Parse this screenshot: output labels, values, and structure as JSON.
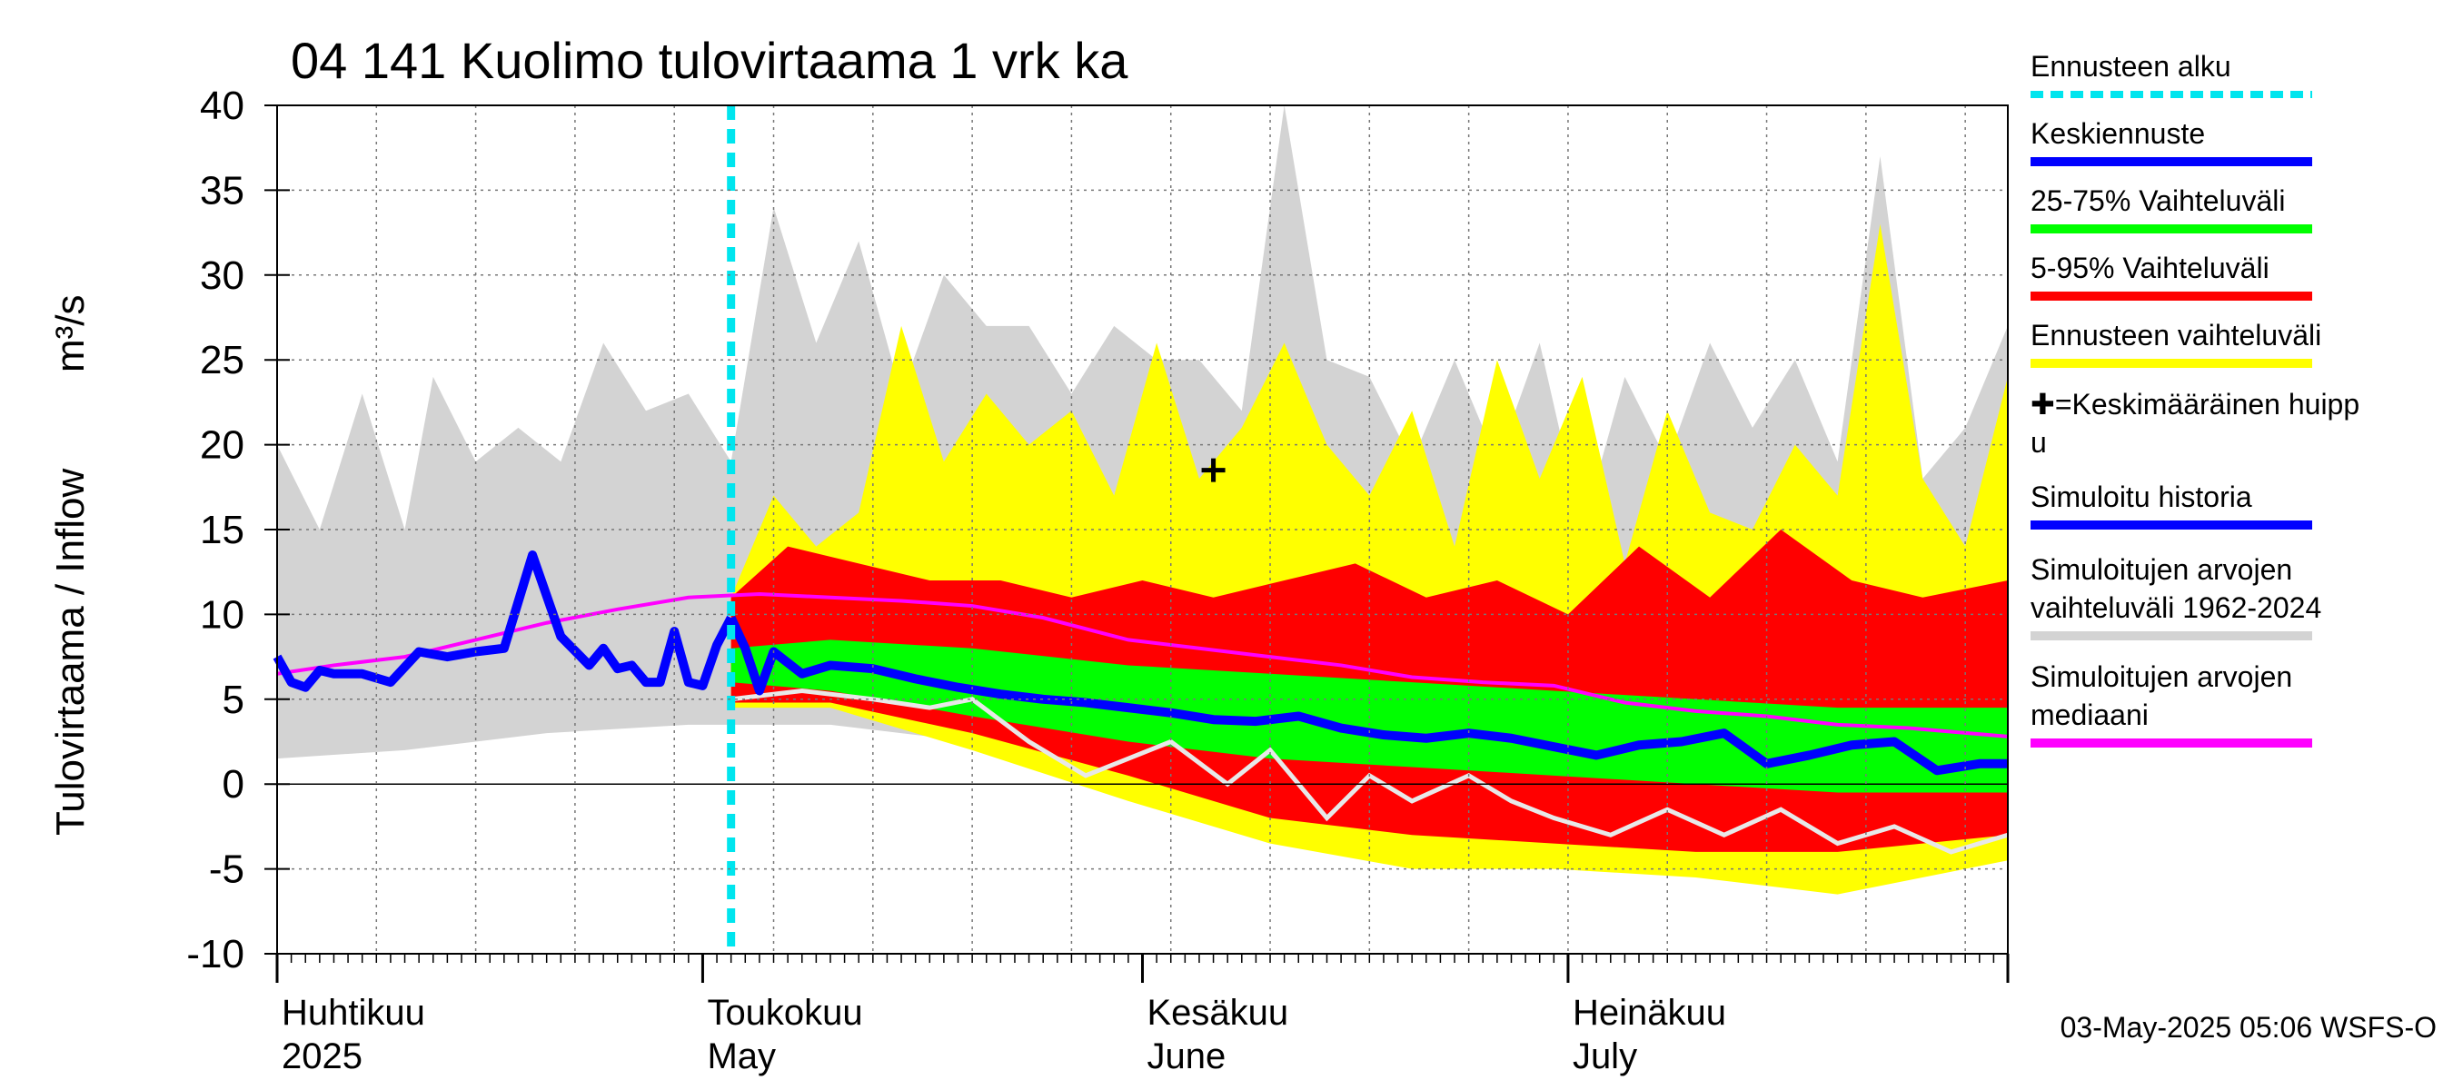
{
  "chart_data": {
    "type": "area",
    "title": "04 141 Kuolimo tulovirtaama 1 vrk ka",
    "ylabel": "Tulovirtaama / Inflow",
    "yunit": "m³/s",
    "ylim": [
      -10,
      40
    ],
    "yticks": [
      -10,
      -5,
      0,
      5,
      10,
      15,
      20,
      25,
      30,
      35,
      40
    ],
    "xlim": [
      "2025-04-01",
      "2025-08-01"
    ],
    "month_labels": [
      {
        "fi": "Huhtikuu",
        "en": "2025",
        "date": "2025-04-01"
      },
      {
        "fi": "Toukokuu",
        "en": "May",
        "date": "2025-05-01"
      },
      {
        "fi": "Kesäkuu",
        "en": "June",
        "date": "2025-06-01"
      },
      {
        "fi": "Heinäkuu",
        "en": "July",
        "date": "2025-07-01"
      }
    ],
    "forecast_start": "2025-05-03",
    "grid": true,
    "legend_position": "right",
    "timestamp": "03-May-2025 05:06 WSFS-O",
    "colors": {
      "forecast_start": "#00e5ee",
      "mean_forecast": "#0000ff",
      "band_25_75": "#00ff00",
      "band_5_95": "#ff0000",
      "forecast_range": "#ffff00",
      "simulated": "#0000ff",
      "hist_range": "#d3d3d3",
      "hist_median": "#ff00ff",
      "white_line": "#e8e8e8"
    },
    "legend": [
      {
        "label": "Ennusteen alku",
        "type": "dash",
        "color": "#00e5ee"
      },
      {
        "label": "Keskiennuste",
        "type": "line",
        "color": "#0000ff"
      },
      {
        "label": "25-75% Vaihteluväli",
        "type": "line",
        "color": "#00ff00"
      },
      {
        "label": "5-95% Vaihteluväli",
        "type": "line",
        "color": "#ff0000"
      },
      {
        "label": "Ennusteen vaihteluväli",
        "type": "line",
        "color": "#ffff00"
      },
      {
        "label": "✚=Keskimääräinen huipp",
        "label2": "u",
        "type": "none"
      },
      {
        "label": "Simuloitu historia",
        "type": "line",
        "color": "#0000ff"
      },
      {
        "label": "Simuloitujen arvojen",
        "label2": "vaihteluväli 1962-2024",
        "type": "line",
        "color": "#d3d3d3"
      },
      {
        "label": "Simuloitujen arvojen",
        "label2": "mediaani",
        "type": "line",
        "color": "#ff00ff"
      }
    ],
    "mean_peak": {
      "date": "2025-06-06",
      "value": 18.5
    },
    "series": [
      {
        "name": "Simuloitu historia",
        "x": [
          "2025-04-01",
          "2025-04-02",
          "2025-04-03",
          "2025-04-04",
          "2025-04-05",
          "2025-04-07",
          "2025-04-09",
          "2025-04-11",
          "2025-04-13",
          "2025-04-15",
          "2025-04-17",
          "2025-04-19",
          "2025-04-21",
          "2025-04-23",
          "2025-04-24",
          "2025-04-25",
          "2025-04-26",
          "2025-04-27",
          "2025-04-28",
          "2025-04-29",
          "2025-04-30",
          "2025-05-01",
          "2025-05-02",
          "2025-05-03"
        ],
        "values": [
          7.5,
          6.0,
          5.7,
          6.7,
          6.5,
          6.5,
          6.0,
          7.8,
          7.5,
          7.8,
          8.0,
          13.5,
          8.7,
          7.0,
          8.0,
          6.8,
          7.0,
          6.0,
          6.0,
          9.0,
          6.0,
          5.8,
          8.2,
          9.8
        ]
      },
      {
        "name": "Keskiennuste",
        "x": [
          "2025-05-03",
          "2025-05-04",
          "2025-05-05",
          "2025-05-06",
          "2025-05-08",
          "2025-05-10",
          "2025-05-13",
          "2025-05-16",
          "2025-05-19",
          "2025-05-22",
          "2025-05-25",
          "2025-05-28",
          "2025-05-31",
          "2025-06-03",
          "2025-06-06",
          "2025-06-09",
          "2025-06-12",
          "2025-06-15",
          "2025-06-18",
          "2025-06-21",
          "2025-06-24",
          "2025-06-27",
          "2025-06-30",
          "2025-07-03",
          "2025-07-06",
          "2025-07-09",
          "2025-07-12",
          "2025-07-15",
          "2025-07-18",
          "2025-07-21",
          "2025-07-24",
          "2025-07-27",
          "2025-07-30",
          "2025-08-01"
        ],
        "values": [
          9.8,
          8.0,
          5.5,
          7.8,
          6.5,
          7.0,
          6.8,
          6.2,
          5.7,
          5.3,
          5.0,
          4.8,
          4.5,
          4.2,
          3.8,
          3.7,
          4.0,
          3.3,
          2.9,
          2.7,
          3.0,
          2.7,
          2.2,
          1.7,
          2.3,
          2.5,
          3.0,
          1.2,
          1.7,
          2.3,
          2.5,
          0.8,
          1.2,
          1.2
        ]
      },
      {
        "name": "Simuloitujen arvojen mediaani",
        "x": [
          "2025-04-01",
          "2025-04-05",
          "2025-04-10",
          "2025-04-15",
          "2025-04-20",
          "2025-04-25",
          "2025-04-30",
          "2025-05-05",
          "2025-05-10",
          "2025-05-15",
          "2025-05-20",
          "2025-05-25",
          "2025-05-31",
          "2025-06-05",
          "2025-06-10",
          "2025-06-15",
          "2025-06-20",
          "2025-06-25",
          "2025-06-30",
          "2025-07-05",
          "2025-07-10",
          "2025-07-15",
          "2025-07-20",
          "2025-07-25",
          "2025-08-01"
        ],
        "values": [
          6.5,
          7.0,
          7.5,
          8.5,
          9.5,
          10.3,
          11.0,
          11.2,
          11.0,
          10.8,
          10.5,
          9.8,
          8.5,
          8.0,
          7.5,
          7.0,
          6.3,
          6.0,
          5.8,
          4.8,
          4.3,
          4.0,
          3.5,
          3.3,
          2.8
        ]
      },
      {
        "name": "Simuloitujen arvojen vaihteluväli 1962-2024 (max)",
        "x": [
          "2025-04-01",
          "2025-04-04",
          "2025-04-07",
          "2025-04-10",
          "2025-04-12",
          "2025-04-15",
          "2025-04-18",
          "2025-04-21",
          "2025-04-24",
          "2025-04-27",
          "2025-04-30",
          "2025-05-03",
          "2025-05-06",
          "2025-05-09",
          "2025-05-12",
          "2025-05-15",
          "2025-05-18",
          "2025-05-21",
          "2025-05-24",
          "2025-05-27",
          "2025-05-30",
          "2025-06-02",
          "2025-06-05",
          "2025-06-08",
          "2025-06-11",
          "2025-06-14",
          "2025-06-17",
          "2025-06-20",
          "2025-06-23",
          "2025-06-26",
          "2025-06-29",
          "2025-07-02",
          "2025-07-05",
          "2025-07-08",
          "2025-07-11",
          "2025-07-14",
          "2025-07-17",
          "2025-07-20",
          "2025-07-23",
          "2025-07-26",
          "2025-07-29",
          "2025-08-01"
        ],
        "values": [
          20,
          15,
          23,
          15,
          24,
          19,
          21,
          19,
          26,
          22,
          23,
          19,
          34,
          26,
          32,
          23,
          30,
          27,
          27,
          23,
          27,
          25,
          25,
          22,
          40,
          25,
          24,
          19,
          25,
          19,
          26,
          15,
          24,
          19,
          26,
          21,
          25,
          19,
          37,
          18,
          21,
          27
        ]
      },
      {
        "name": "Simuloitujen arvojen vaihteluväli 1962-2024 (min)",
        "x": [
          "2025-04-01",
          "2025-04-10",
          "2025-04-20",
          "2025-04-30",
          "2025-05-10",
          "2025-05-20",
          "2025-05-31",
          "2025-06-10",
          "2025-06-20",
          "2025-06-30",
          "2025-07-10",
          "2025-07-20",
          "2025-08-01"
        ],
        "values": [
          1.5,
          2.0,
          3.0,
          3.5,
          3.5,
          2.5,
          0.5,
          -1.0,
          -3.0,
          -4.0,
          -4.5,
          -5.0,
          -4.0
        ]
      },
      {
        "name": "Ennusteen vaihteluväli (max)",
        "x": [
          "2025-05-03",
          "2025-05-06",
          "2025-05-09",
          "2025-05-12",
          "2025-05-15",
          "2025-05-18",
          "2025-05-21",
          "2025-05-24",
          "2025-05-27",
          "2025-05-30",
          "2025-06-02",
          "2025-06-05",
          "2025-06-08",
          "2025-06-11",
          "2025-06-14",
          "2025-06-17",
          "2025-06-20",
          "2025-06-23",
          "2025-06-26",
          "2025-06-29",
          "2025-07-02",
          "2025-07-05",
          "2025-07-08",
          "2025-07-11",
          "2025-07-14",
          "2025-07-17",
          "2025-07-20",
          "2025-07-23",
          "2025-07-26",
          "2025-07-29",
          "2025-08-01"
        ],
        "values": [
          11,
          17,
          14,
          16,
          27,
          19,
          23,
          20,
          22,
          17,
          26,
          18,
          21,
          26,
          20,
          17,
          22,
          14,
          25,
          18,
          24,
          13,
          22,
          16,
          15,
          20,
          17,
          33,
          18,
          14,
          24
        ]
      },
      {
        "name": "Ennusteen vaihteluväli (min)",
        "x": [
          "2025-05-03",
          "2025-05-10",
          "2025-05-20",
          "2025-05-31",
          "2025-06-10",
          "2025-06-20",
          "2025-06-30",
          "2025-07-10",
          "2025-07-20",
          "2025-08-01"
        ],
        "values": [
          4.5,
          4.5,
          2.0,
          -1.0,
          -3.5,
          -5.0,
          -5.0,
          -5.5,
          -6.5,
          -4.5
        ]
      },
      {
        "name": "5-95% Vaihteluväli (max)",
        "x": [
          "2025-05-03",
          "2025-05-07",
          "2025-05-12",
          "2025-05-17",
          "2025-05-22",
          "2025-05-27",
          "2025-06-01",
          "2025-06-06",
          "2025-06-11",
          "2025-06-16",
          "2025-06-21",
          "2025-06-26",
          "2025-07-01",
          "2025-07-06",
          "2025-07-11",
          "2025-07-16",
          "2025-07-21",
          "2025-07-26",
          "2025-08-01"
        ],
        "values": [
          11,
          14,
          13,
          12,
          12,
          11,
          12,
          11,
          12,
          13,
          11,
          12,
          10,
          14,
          11,
          15,
          12,
          11,
          12
        ]
      },
      {
        "name": "5-95% Vaihteluväli (min)",
        "x": [
          "2025-05-03",
          "2025-05-10",
          "2025-05-20",
          "2025-05-31",
          "2025-06-10",
          "2025-06-20",
          "2025-06-30",
          "2025-07-10",
          "2025-07-20",
          "2025-08-01"
        ],
        "values": [
          4.8,
          4.8,
          3.0,
          0.5,
          -2.0,
          -3.0,
          -3.5,
          -4.0,
          -4.0,
          -3.0
        ]
      },
      {
        "name": "25-75% Vaihteluväli (max)",
        "x": [
          "2025-05-03",
          "2025-05-10",
          "2025-05-20",
          "2025-05-31",
          "2025-06-10",
          "2025-06-20",
          "2025-06-30",
          "2025-07-10",
          "2025-07-20",
          "2025-08-01"
        ],
        "values": [
          8.0,
          8.5,
          8.0,
          7.0,
          6.5,
          6.0,
          5.5,
          5.0,
          4.5,
          4.5
        ]
      },
      {
        "name": "25-75% Vaihteluväli (min)",
        "x": [
          "2025-05-03",
          "2025-05-10",
          "2025-05-20",
          "2025-05-31",
          "2025-06-10",
          "2025-06-20",
          "2025-06-30",
          "2025-07-10",
          "2025-07-20",
          "2025-08-01"
        ],
        "values": [
          6.0,
          5.5,
          4.0,
          2.5,
          1.5,
          1.0,
          0.5,
          0.0,
          -0.5,
          -0.5
        ]
      },
      {
        "name": "white line",
        "x": [
          "2025-05-03",
          "2025-05-08",
          "2025-05-13",
          "2025-05-17",
          "2025-05-20",
          "2025-05-24",
          "2025-05-28",
          "2025-05-31",
          "2025-06-03",
          "2025-06-07",
          "2025-06-10",
          "2025-06-14",
          "2025-06-17",
          "2025-06-20",
          "2025-06-24",
          "2025-06-27",
          "2025-06-30",
          "2025-07-04",
          "2025-07-08",
          "2025-07-12",
          "2025-07-16",
          "2025-07-20",
          "2025-07-24",
          "2025-07-28",
          "2025-08-01"
        ],
        "values": [
          5.0,
          5.5,
          5.0,
          4.5,
          5.0,
          2.5,
          0.5,
          1.5,
          2.5,
          0.0,
          2.0,
          -2.0,
          0.5,
          -1.0,
          0.5,
          -1.0,
          -2.0,
          -3.0,
          -1.5,
          -3.0,
          -1.5,
          -3.5,
          -2.5,
          -4.0,
          -3.0
        ]
      }
    ]
  }
}
